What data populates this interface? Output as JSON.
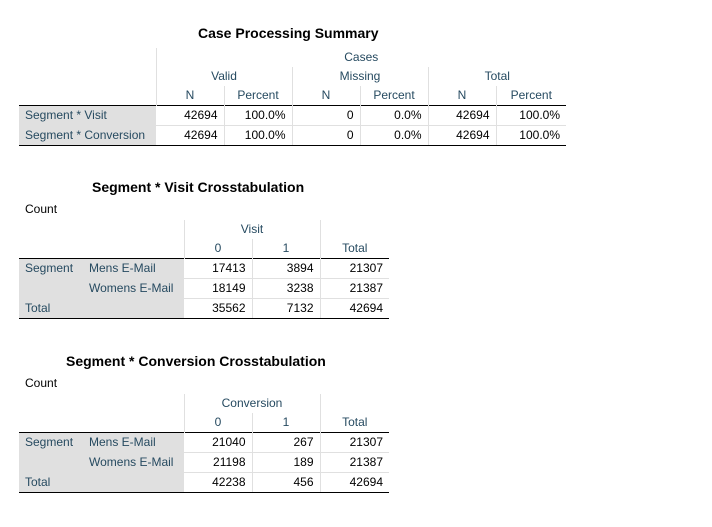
{
  "case_summary": {
    "title": "Case Processing Summary",
    "cases_label": "Cases",
    "groups": [
      "Valid",
      "Missing",
      "Total"
    ],
    "sub_headers": [
      "N",
      "Percent",
      "N",
      "Percent",
      "N",
      "Percent"
    ],
    "rows": [
      {
        "label": "Segment * Visit",
        "cells": [
          "42694",
          "100.0%",
          "0",
          "0.0%",
          "42694",
          "100.0%"
        ]
      },
      {
        "label": "Segment * Conversion",
        "cells": [
          "42694",
          "100.0%",
          "0",
          "0.0%",
          "42694",
          "100.0%"
        ]
      }
    ]
  },
  "visit_crosstab": {
    "title": "Segment * Visit Crosstabulation",
    "count_label": "Count",
    "var_label": "Visit",
    "col_headers": [
      "0",
      "1",
      "Total"
    ],
    "row_var": "Segment",
    "rows": [
      {
        "label": "Mens E-Mail",
        "cells": [
          "17413",
          "3894",
          "21307"
        ]
      },
      {
        "label": "Womens E-Mail",
        "cells": [
          "18149",
          "3238",
          "21387"
        ]
      }
    ],
    "total": {
      "label": "Total",
      "cells": [
        "35562",
        "7132",
        "42694"
      ]
    }
  },
  "conversion_crosstab": {
    "title": "Segment * Conversion Crosstabulation",
    "count_label": "Count",
    "var_label": "Conversion",
    "col_headers": [
      "0",
      "1",
      "Total"
    ],
    "row_var": "Segment",
    "rows": [
      {
        "label": "Mens E-Mail",
        "cells": [
          "21040",
          "267",
          "21307"
        ]
      },
      {
        "label": "Womens E-Mail",
        "cells": [
          "21198",
          "189",
          "21387"
        ]
      }
    ],
    "total": {
      "label": "Total",
      "cells": [
        "42238",
        "456",
        "42694"
      ]
    }
  }
}
